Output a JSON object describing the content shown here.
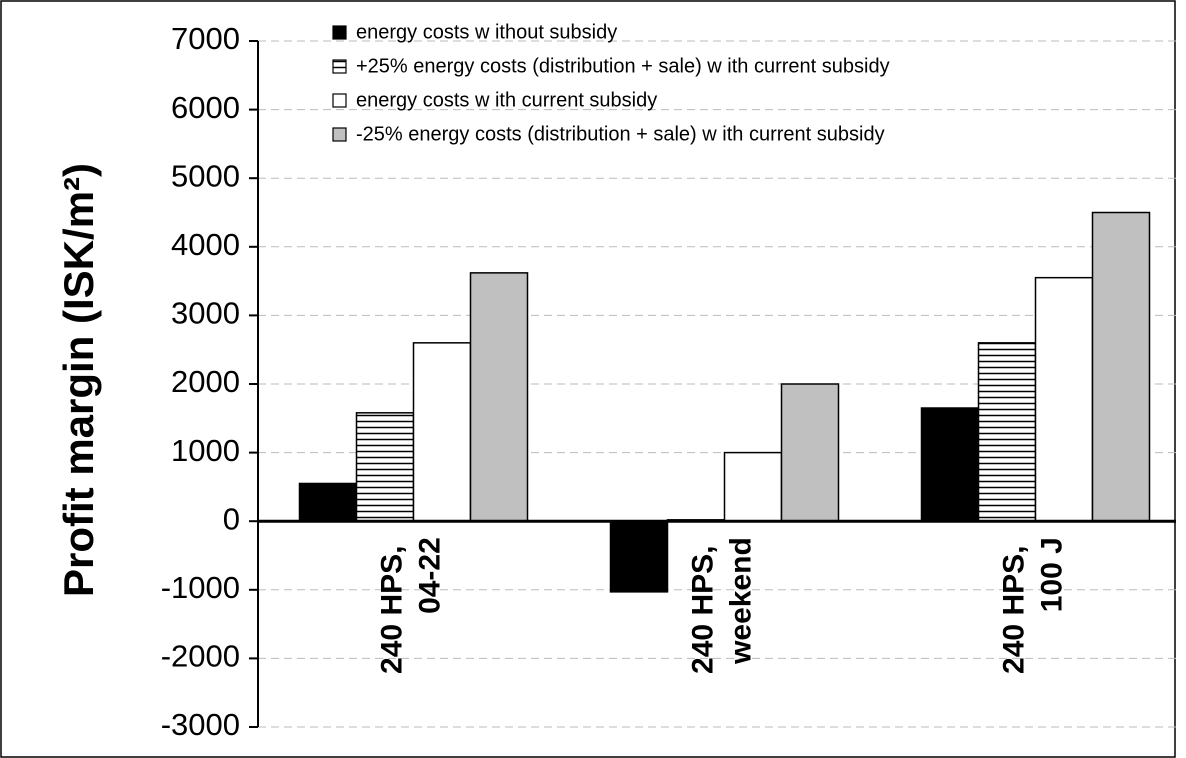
{
  "chart_data": {
    "type": "bar",
    "y_label": "Profit margin (ISK/m²)",
    "categories": [
      "240 HPS, 04-22",
      "240 HPS, weekend",
      "240 HPS, 100 J"
    ],
    "series": [
      {
        "name": "energy costs w ithout subsidy",
        "color": "#000000",
        "values": [
          550,
          -1030,
          1650
        ]
      },
      {
        "name": "+25% energy costs (distribution + sale) w ith current subsidy",
        "color": "#ffffff",
        "hatch": "horizontal",
        "values": [
          1580,
          20,
          2600
        ]
      },
      {
        "name": "energy costs w ith current subsidy",
        "color": "#ffffff",
        "values": [
          2600,
          1000,
          3550
        ]
      },
      {
        "name": "-25% energy costs (distribution + sale) w ith current subsidy",
        "color": "#c0c0c0",
        "values": [
          3620,
          2000,
          4500
        ]
      }
    ],
    "ylim": [
      -3000,
      7000
    ],
    "yticks": [
      -3000,
      -2000,
      -1000,
      0,
      1000,
      2000,
      3000,
      4000,
      5000,
      6000,
      7000
    ],
    "grid": true,
    "legend": "top"
  }
}
